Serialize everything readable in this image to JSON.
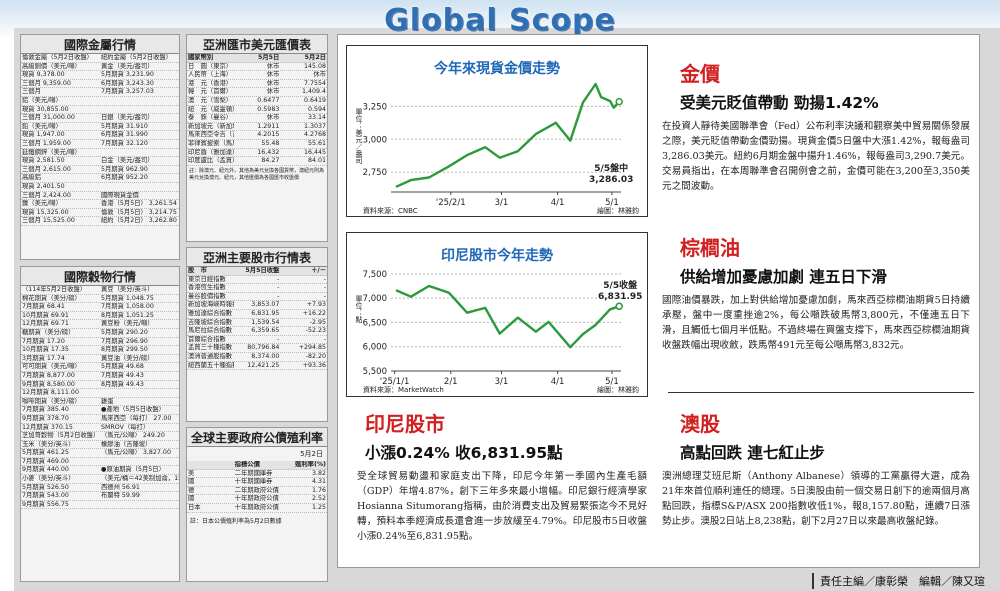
{
  "banner_title": "Global Scope",
  "metals": {
    "title": "國際金屬行情",
    "rows": [
      [
        "倫敦金屬（5月2日收盤）",
        "紐約金屬（5月2日收盤）"
      ],
      [
        "高級銅價（美元/噸）",
        "黃金（美元/盎司）"
      ],
      [
        "現貨 9,378.00",
        "5月期貨 3,231.90"
      ],
      [
        "三個月 9,359.00",
        "6月期貨 3,243.30"
      ],
      [
        "三個月",
        "7月期貨 3,257.03"
      ],
      [
        "鋁（美元/噸）",
        ""
      ],
      [
        "現貨 30,855.00",
        ""
      ],
      [
        "三個月 31,000.00",
        "日銀（美元/盎司）"
      ],
      [
        "鉛（美元/噸）",
        "5月期貨 31.910"
      ],
      [
        "現貨 1,947.00",
        "6月期貨 31.990"
      ],
      [
        "三個月 1,959.00",
        "7月期貨 32.120"
      ],
      [
        "延鐵鋼鋅（美元/噸）",
        ""
      ],
      [
        "現貨 2,581.50",
        "白金（美元/盎司）"
      ],
      [
        "三個月 2,615.00",
        "5月期貨 962.90"
      ],
      [
        "高級鋁",
        "6月期貨 952.20"
      ],
      [
        "現貨 2,401.50",
        ""
      ],
      [
        "三個月 2,424.00",
        "國際現貨金價"
      ],
      [
        "鎳（美元/噸）",
        "香港（5月5日） 3,261.54"
      ],
      [
        "現貨 15,325.00",
        "倫敦（5月5日） 3,214.75"
      ],
      [
        "三個月 15,525.00",
        "紐約（5月2日） 3,262.80"
      ]
    ]
  },
  "grains": {
    "title": "國際穀物行情",
    "rows": [
      [
        "（114年5月2日收盤）",
        "黃豆（美分/英斗）"
      ],
      [
        "棉花期貨（美分/磅）",
        "5月期貨 1,048.75"
      ],
      [
        "7月期貨 68.41",
        "7月期貨 1,058.00"
      ],
      [
        "10月期貨 69.91",
        "8月期貨 1,051.25"
      ],
      [
        "12月期貨 69.71",
        "黃豆粉（美元/噸）"
      ],
      [
        "糖期貨（美分/磅）",
        "5月期貨 290.20"
      ],
      [
        "7月期貨 17.20",
        "7月期貨 296.90"
      ],
      [
        "10月期貨 17.35",
        "8月期貨 299.50"
      ],
      [
        "3月期貨 17.74",
        "黃豆油（美分/磅）"
      ],
      [
        "可可期貨（美元/噸）",
        "5月期貨 49.68"
      ],
      [
        "7月期貨 8,877.00",
        "7月期貨 49.43"
      ],
      [
        "9月期貨 8,580.00",
        "8月期貨 49.43"
      ],
      [
        "12月期貨 8,111.00",
        ""
      ],
      [
        "咖啡期貨（美分/磅）",
        "雞蛋"
      ],
      [
        "7月期貨 385.40",
        "●產地（5月5日收盤）"
      ],
      [
        "9月期貨 378.70",
        "馬來西亞（每打） 27.00"
      ],
      [
        "12月期貨 370.15",
        "SMROV（每打）"
      ],
      [
        "芝加哥穀物（5月2日收盤）",
        "（馬元/公噸） 249.20"
      ],
      [
        "玉米（美分/英斗）",
        "橡膠油（吉隆坡）"
      ],
      [
        "5月期貨 461.25",
        "（馬元/公噸） 3,827.00"
      ],
      [
        "7月期貨 469.00",
        ""
      ],
      [
        "9月期貨 440.00",
        "●原油期貨（5月5日）"
      ],
      [
        "小麥（美分/英斗）",
        "（美元/桶＝42美制加侖，158.98公升）"
      ],
      [
        "5月期貨 526.50",
        "西德州 56.91"
      ],
      [
        "7月期貨 543.00",
        "布蘭特 59.99"
      ],
      [
        "9月期貨 556.75",
        ""
      ]
    ]
  },
  "fx": {
    "title": "亞洲匯市美元匯價表",
    "headers": [
      "國家幣別",
      "5月5日",
      "5月2日"
    ],
    "rows": [
      [
        "日　圓（東京）",
        "休市",
        "145.08"
      ],
      [
        "人民幣（上海）",
        "休市",
        "休市"
      ],
      [
        "港　元（香港）",
        "休市",
        "7.7554"
      ],
      [
        "韓　元（首爾）",
        "休市",
        "1,409.4"
      ],
      [
        "澳　元（雪梨）",
        "0.6477",
        "0.6419"
      ],
      [
        "紐　元（威靈頓）",
        "0.5983",
        "0.594"
      ],
      [
        "泰　銖（曼谷）",
        "休市",
        "33.14"
      ],
      [
        "新加坡元（新加坡）",
        "1.2911",
        "1.3037"
      ],
      [
        "馬來西亞令吉（吉隆坡）",
        "4.2015",
        "4.2768"
      ],
      [
        "菲律賓披索（馬尼拉）",
        "55.48",
        "55.61"
      ],
      [
        "印尼盾（雅加達）",
        "16,432",
        "16,445"
      ],
      [
        "印度盧比（孟買）",
        "84.27",
        "84.01"
      ]
    ],
    "note": "註：除澳元、紐元外，其他為美元兌換各國貨幣，澳紐元則為美元兌換澳元、紐元，其他匯價為各國匯市收盤價"
  },
  "stocks": {
    "title": "亞洲主要股市行情表",
    "headers": [
      "股　市",
      "5月5日收盤",
      "＋/－"
    ],
    "rows": [
      [
        "東京日經指數",
        "-",
        "-"
      ],
      [
        "香港恆生指數",
        "-",
        "-"
      ],
      [
        "曼谷股價指數",
        "-",
        "-"
      ],
      [
        "新加坡海峽時報指數",
        "3,853.07",
        "+7.93"
      ],
      [
        "雅加達綜合指數",
        "6,831.95",
        "+16.22"
      ],
      [
        "吉隆坡綜合指數",
        "1,539.54",
        "-2.95"
      ],
      [
        "馬尼拉綜合指數",
        "6,359.65",
        "-52.23"
      ],
      [
        "首爾綜合指數",
        "-",
        "-"
      ],
      [
        "孟買三十種指數",
        "80,796.84",
        "+294.85"
      ],
      [
        "澳洲普通股指數",
        "8,374.00",
        "-82.20"
      ],
      [
        "紐西蘭五十種指數",
        "12,421.25",
        "+93.36"
      ]
    ]
  },
  "bonds": {
    "title": "全球主要政府公債殖利率",
    "date": "5月2日",
    "headers": [
      "指標公債",
      "殖利率(%)"
    ],
    "rows": [
      [
        "美",
        "二年期國庫券",
        "3.82"
      ],
      [
        "國",
        "十年期國庫券",
        "4.31"
      ],
      [
        "德",
        "二年期政府公債",
        "1.76"
      ],
      [
        "國",
        "十年期政府公債",
        "2.52"
      ],
      [
        "日本",
        "十年期政府公債",
        "1.25"
      ]
    ],
    "note": "註：日本公債殖利率為5月2日數據"
  },
  "gold_chart": {
    "title": "今年來現貨金價走勢",
    "unit": "單位：美元／盎司",
    "annotation": "5/5盤中",
    "annotation_value": "3,286.03",
    "source": "資料來源：CNBC",
    "credit": "繪圖：林雅鈞"
  },
  "idx_chart": {
    "title": "印尼股市今年走勢",
    "unit": "單位：點",
    "annotation": "5/5收盤",
    "annotation_value": "6,831.95",
    "source": "資料來源：MarketWatch",
    "credit": "繪圖：林雅鈞"
  },
  "chart_data": [
    {
      "type": "line",
      "title": "今年來現貨金價走勢",
      "ylabel": "單位：美元／盎司",
      "x_ticks": [
        "'25/2/1",
        "3/1",
        "4/1",
        "5/1"
      ],
      "y_ticks": [
        2750,
        3000,
        3250
      ],
      "ylim": [
        2600,
        3450
      ],
      "x": [
        "2025-01-02",
        "2025-01-10",
        "2025-01-20",
        "2025-01-31",
        "2025-02-10",
        "2025-02-20",
        "2025-02-28",
        "2025-03-10",
        "2025-03-20",
        "2025-03-31",
        "2025-04-08",
        "2025-04-15",
        "2025-04-22",
        "2025-04-25",
        "2025-04-30",
        "2025-05-02",
        "2025-05-05"
      ],
      "y": [
        2640,
        2690,
        2710,
        2795,
        2880,
        2940,
        2860,
        2910,
        3040,
        3125,
        2990,
        3280,
        3420,
        3320,
        3290,
        3240,
        3286.03
      ]
    },
    {
      "type": "line",
      "title": "印尼股市今年走勢",
      "ylabel": "單位：點",
      "x_ticks": [
        "'25/1/1",
        "2/1",
        "3/1",
        "4/1",
        "5/1"
      ],
      "y_ticks": [
        5500,
        6000,
        6500,
        7000,
        7500
      ],
      "ylim": [
        5500,
        7600
      ],
      "x": [
        "2025-01-02",
        "2025-01-10",
        "2025-01-20",
        "2025-01-31",
        "2025-02-10",
        "2025-02-20",
        "2025-02-28",
        "2025-03-10",
        "2025-03-20",
        "2025-03-27",
        "2025-04-08",
        "2025-04-15",
        "2025-04-22",
        "2025-04-30",
        "2025-05-05"
      ],
      "y": [
        7160,
        7030,
        7250,
        7110,
        6700,
        6800,
        6270,
        6600,
        6310,
        6510,
        5990,
        6260,
        6450,
        6770,
        6831.95
      ]
    }
  ],
  "articles": {
    "gold": {
      "heading": "金價",
      "subheading": "受美元貶值帶動 勁揚1.42%",
      "body": "在投資人靜待美國聯準會（Fed）公布利率決議和觀察美中貿易關係發展之際，美元貶值帶動金價勁揚。現貨金價5日盤中大漲1.42%，報每盎司3,286.03美元。紐約6月期金盤中揚升1.46%，報每盎司3,290.7美元。交易員指出，在本周聯準會召開例會之前，金價可能在3,200至3,350美元之間波動。"
    },
    "palm": {
      "heading": "棕櫚油",
      "subheading": "供給增加憂慮加劇 連五日下滑",
      "body": "國際油價暴跌，加上對供給增加憂慮加劇，馬來西亞棕櫚油期貨5日持續承壓，盤中一度重挫逾2%，每公噸跌破馬幣3,800元，不僅連五日下滑，且觸低七個月半低點。不過終場在買盤支撐下，馬來西亞棕櫚油期貨收盤跌幅出現收斂，跌馬幣491元至每公噸馬幣3,832元。"
    },
    "indo": {
      "heading": "印尼股市",
      "subheading": "小漲0.24% 收6,831.95點",
      "body": "受全球貿易動盪和家庭支出下降，印尼今年第一季國內生產毛額（GDP）年增4.87%，創下三年多來最小增幅。印尼銀行經濟學家Hosianna Situmorang指稱，由於消費支出及貿易緊張迄今不見好轉，預料本季經濟成長還會進一步放緩至4.79%。印尼股市5日收盤小漲0.24%至6,831.95點。"
    },
    "aus": {
      "heading": "澳股",
      "subheading": "高點回跌 連七紅止步",
      "body": "澳洲總理艾班尼斯（Anthony Albanese）領導的工黨贏得大選，成為21年來首位順利連任的總理。5日澳股由前一個交易日創下的逾兩個月高點回跌，指標S&P/ASX 200指數收低1%，報8,157.80點，連續7日漲勢止步。澳股2日站上8,238點，創下2月27日以來最高收盤紀錄。"
    }
  },
  "footer": "責任主編／康彰榮　編輯／陳又瑄"
}
